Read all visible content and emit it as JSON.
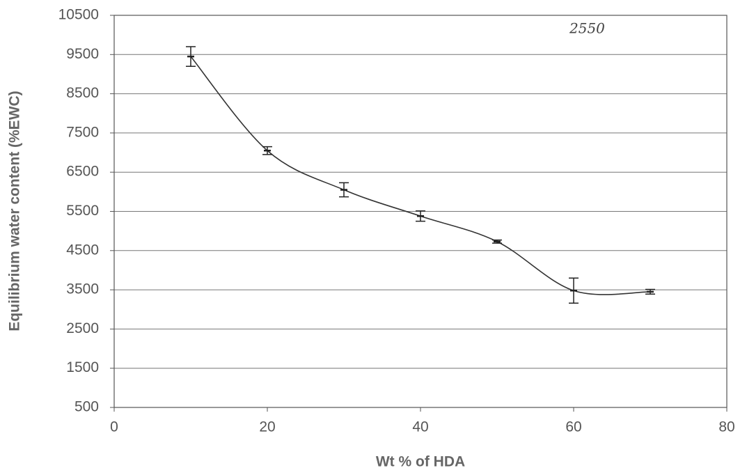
{
  "chart_data": {
    "type": "line",
    "xlabel": "Wt % of HDA",
    "ylabel": "Equilibrium water content (%EWC)",
    "annotation": "2550",
    "x": [
      10,
      20,
      30,
      40,
      50,
      60,
      70
    ],
    "values": [
      9450,
      7050,
      6050,
      5380,
      4730,
      3480,
      3450
    ],
    "errors": [
      250,
      100,
      180,
      130,
      40,
      320,
      60
    ],
    "color": "#333333",
    "xlim": [
      0,
      80
    ],
    "xticks": [
      0,
      20,
      40,
      60,
      80
    ],
    "ylim": [
      500,
      10500
    ],
    "yticks": [
      500,
      1500,
      2500,
      3500,
      4500,
      5500,
      6500,
      7500,
      8500,
      9500,
      10500
    ],
    "grid": true
  }
}
